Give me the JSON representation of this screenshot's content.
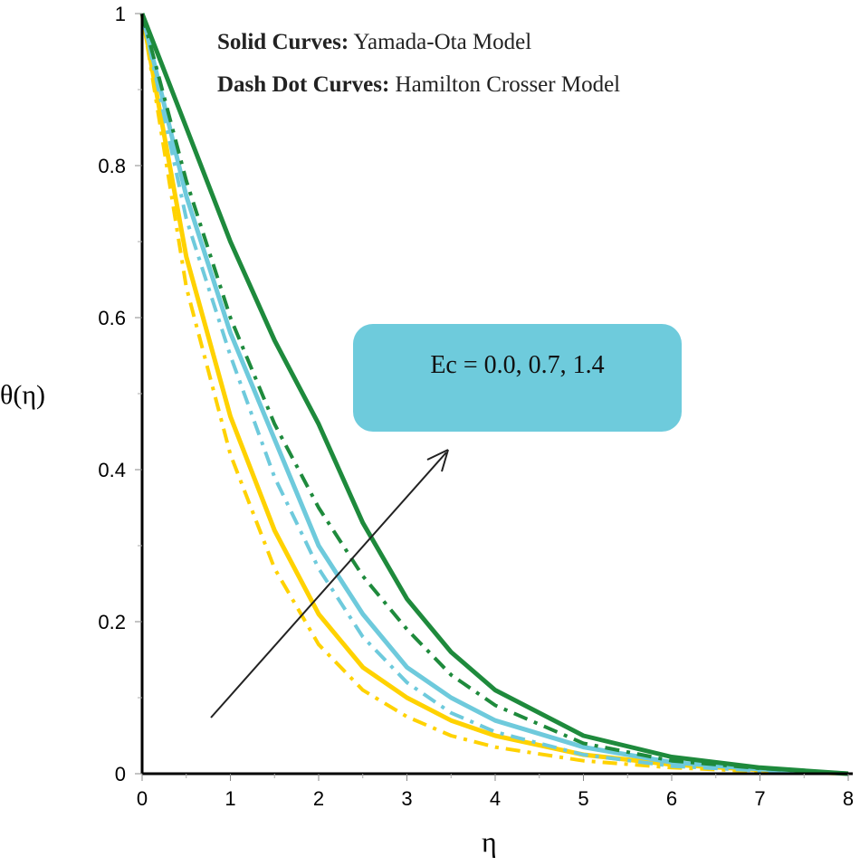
{
  "chart_data": {
    "type": "line",
    "title": "",
    "xlabel": "η",
    "ylabel": "θ(η)",
    "xlim": [
      0,
      8
    ],
    "ylim": [
      0,
      1
    ],
    "xticks": [
      "0",
      "1",
      "2",
      "3",
      "4",
      "5",
      "6",
      "7",
      "8"
    ],
    "yticks": [
      "0",
      "0.2",
      "0.4",
      "0.6",
      "0.8",
      "1"
    ],
    "grid": false,
    "annotations": {
      "solid_label": "Solid Curves:",
      "solid_model": "Yamada-Ota Model",
      "dashdot_label": "Dash Dot Curves:",
      "dashdot_model": "Hamilton Crosser Model",
      "ec_box": "Ec = 0.0, 0.7, 1.4",
      "ec_box_color": "#6ecbdc",
      "arrow": "increasing Ec direction"
    },
    "x": [
      0,
      0.5,
      1,
      1.5,
      2,
      2.5,
      3,
      3.5,
      4,
      5,
      6,
      7,
      8
    ],
    "series": [
      {
        "color": "#ffd200",
        "style": "solid",
        "values": [
          1,
          0.68,
          0.47,
          0.32,
          0.21,
          0.14,
          0.1,
          0.07,
          0.05,
          0.025,
          0.012,
          0.005,
          0
        ]
      },
      {
        "color": "#ffd200",
        "style": "dashdot",
        "values": [
          1,
          0.64,
          0.42,
          0.27,
          0.17,
          0.11,
          0.075,
          0.05,
          0.035,
          0.017,
          0.008,
          0.003,
          0
        ]
      },
      {
        "color": "#6ecadc",
        "style": "solid",
        "values": [
          1,
          0.76,
          0.58,
          0.44,
          0.3,
          0.21,
          0.14,
          0.1,
          0.07,
          0.035,
          0.015,
          0.006,
          0
        ]
      },
      {
        "color": "#6ecadc",
        "style": "dashdot",
        "values": [
          1,
          0.73,
          0.55,
          0.39,
          0.27,
          0.18,
          0.12,
          0.08,
          0.055,
          0.025,
          0.01,
          0.004,
          0
        ]
      },
      {
        "color": "#1e8a3c",
        "style": "dashdot",
        "values": [
          1,
          0.78,
          0.6,
          0.46,
          0.35,
          0.26,
          0.19,
          0.13,
          0.09,
          0.04,
          0.017,
          0.007,
          0
        ]
      },
      {
        "color": "#1e8a3c",
        "style": "solid",
        "values": [
          1,
          0.85,
          0.7,
          0.57,
          0.46,
          0.33,
          0.23,
          0.16,
          0.11,
          0.05,
          0.022,
          0.008,
          0
        ]
      }
    ]
  }
}
